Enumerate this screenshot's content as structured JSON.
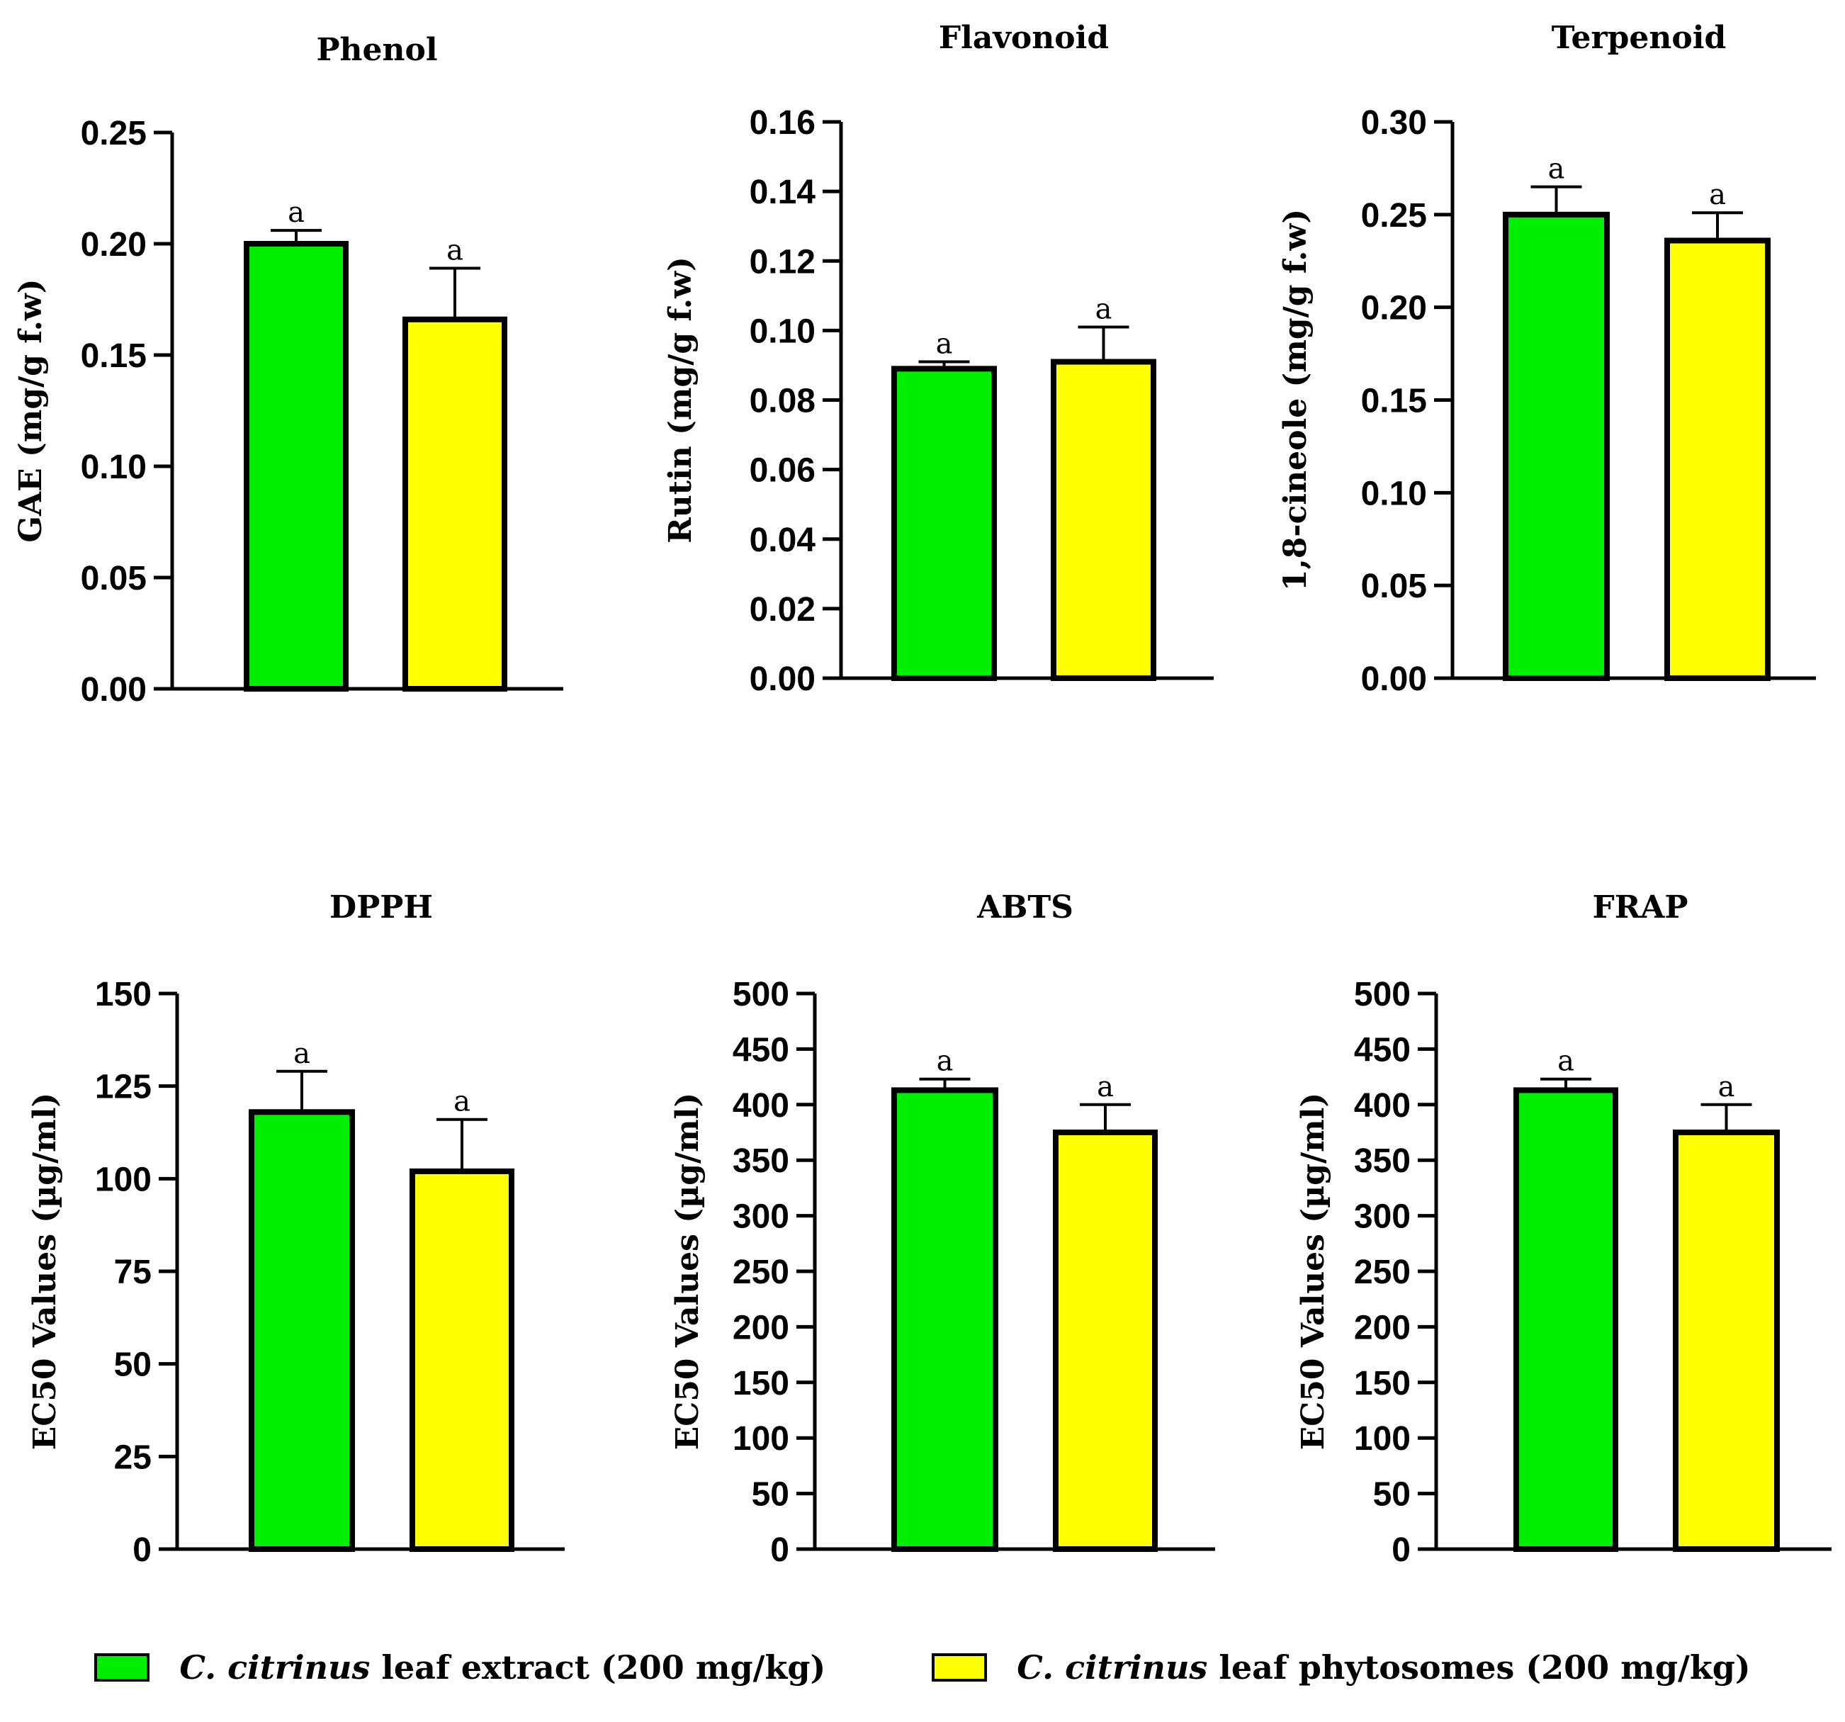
{
  "colors": {
    "extract": "#00ee00",
    "phytosomes": "#ffff00",
    "axis": "#000000"
  },
  "legend": {
    "items": [
      {
        "species": "C. citrinus",
        "label": " leaf extract (200 mg/kg)",
        "color": "#00ee00"
      },
      {
        "species": "C. citrinus",
        "label": " leaf phytosomes (200 mg/kg)",
        "color": "#ffff00"
      }
    ]
  },
  "chart_data": [
    {
      "type": "bar",
      "title": "Phenol",
      "ylabel": "GAE (mg/g f.w)",
      "categories": [
        "C. citrinus leaf extract (200 mg/kg)",
        "C. citrinus leaf phytosomes (200 mg/kg)"
      ],
      "values": [
        0.2,
        0.166
      ],
      "errors": [
        0.006,
        0.023
      ],
      "letters": [
        "a",
        "a"
      ],
      "ylim": [
        0,
        0.25
      ],
      "yticks": [
        0.0,
        0.05,
        0.1,
        0.15,
        0.2,
        0.25
      ],
      "ytick_labels": [
        "0.00",
        "0.05",
        "0.10",
        "0.15",
        "0.20",
        "0.25"
      ]
    },
    {
      "type": "bar",
      "title": "Flavonoid",
      "ylabel": "Rutin (mg/g f.w)",
      "categories": [
        "C. citrinus leaf extract (200 mg/kg)",
        "C. citrinus leaf phytosomes (200 mg/kg)"
      ],
      "values": [
        0.089,
        0.091
      ],
      "errors": [
        0.002,
        0.01
      ],
      "letters": [
        "a",
        "a"
      ],
      "ylim": [
        0,
        0.16
      ],
      "yticks": [
        0.0,
        0.02,
        0.04,
        0.06,
        0.08,
        0.1,
        0.12,
        0.14,
        0.16
      ],
      "ytick_labels": [
        "0.00",
        "0.02",
        "0.04",
        "0.06",
        "0.08",
        "0.10",
        "0.12",
        "0.14",
        "0.16"
      ]
    },
    {
      "type": "bar",
      "title": "Terpenoid",
      "ylabel": "1,8-cineole (mg/g f.w)",
      "categories": [
        "C. citrinus leaf extract (200 mg/kg)",
        "C. citrinus leaf phytosomes (200 mg/kg)"
      ],
      "values": [
        0.25,
        0.236
      ],
      "errors": [
        0.015,
        0.015
      ],
      "letters": [
        "a",
        "a"
      ],
      "ylim": [
        0,
        0.3
      ],
      "yticks": [
        0.0,
        0.05,
        0.1,
        0.15,
        0.2,
        0.25,
        0.3
      ],
      "ytick_labels": [
        "0.00",
        "0.05",
        "0.10",
        "0.15",
        "0.20",
        "0.25",
        "0.30"
      ]
    },
    {
      "type": "bar",
      "title": "DPPH",
      "ylabel": "EC50 Values (µg/ml)",
      "categories": [
        "C. citrinus leaf extract (200 mg/kg)",
        "C. citrinus leaf phytosomes (200 mg/kg)"
      ],
      "values": [
        118,
        102
      ],
      "errors": [
        11,
        14
      ],
      "letters": [
        "a",
        "a"
      ],
      "ylim": [
        0,
        150
      ],
      "yticks": [
        0,
        25,
        50,
        75,
        100,
        125,
        150
      ],
      "ytick_labels": [
        "0",
        "25",
        "50",
        "75",
        "100",
        "125",
        "150"
      ]
    },
    {
      "type": "bar",
      "title": "ABTS",
      "ylabel": "EC50 Values (µg/ml)",
      "categories": [
        "C. citrinus leaf extract (200 mg/kg)",
        "C. citrinus leaf phytosomes (200 mg/kg)"
      ],
      "values": [
        413,
        375
      ],
      "errors": [
        10,
        25
      ],
      "letters": [
        "a",
        "a"
      ],
      "ylim": [
        0,
        500
      ],
      "yticks": [
        0,
        50,
        100,
        150,
        200,
        250,
        300,
        350,
        400,
        450,
        500
      ],
      "ytick_labels": [
        "0",
        "50",
        "100",
        "150",
        "200",
        "250",
        "300",
        "350",
        "400",
        "450",
        "500"
      ]
    },
    {
      "type": "bar",
      "title": "FRAP",
      "ylabel": "EC50 Values (µg/ml)",
      "categories": [
        "C. citrinus leaf extract (200 mg/kg)",
        "C. citrinus leaf phytosomes (200 mg/kg)"
      ],
      "values": [
        413,
        375
      ],
      "errors": [
        10,
        25
      ],
      "letters": [
        "a",
        "a"
      ],
      "ylim": [
        0,
        500
      ],
      "yticks": [
        0,
        50,
        100,
        150,
        200,
        250,
        300,
        350,
        400,
        450,
        500
      ],
      "ytick_labels": [
        "0",
        "50",
        "100",
        "150",
        "200",
        "250",
        "300",
        "350",
        "400",
        "450",
        "500"
      ]
    }
  ]
}
